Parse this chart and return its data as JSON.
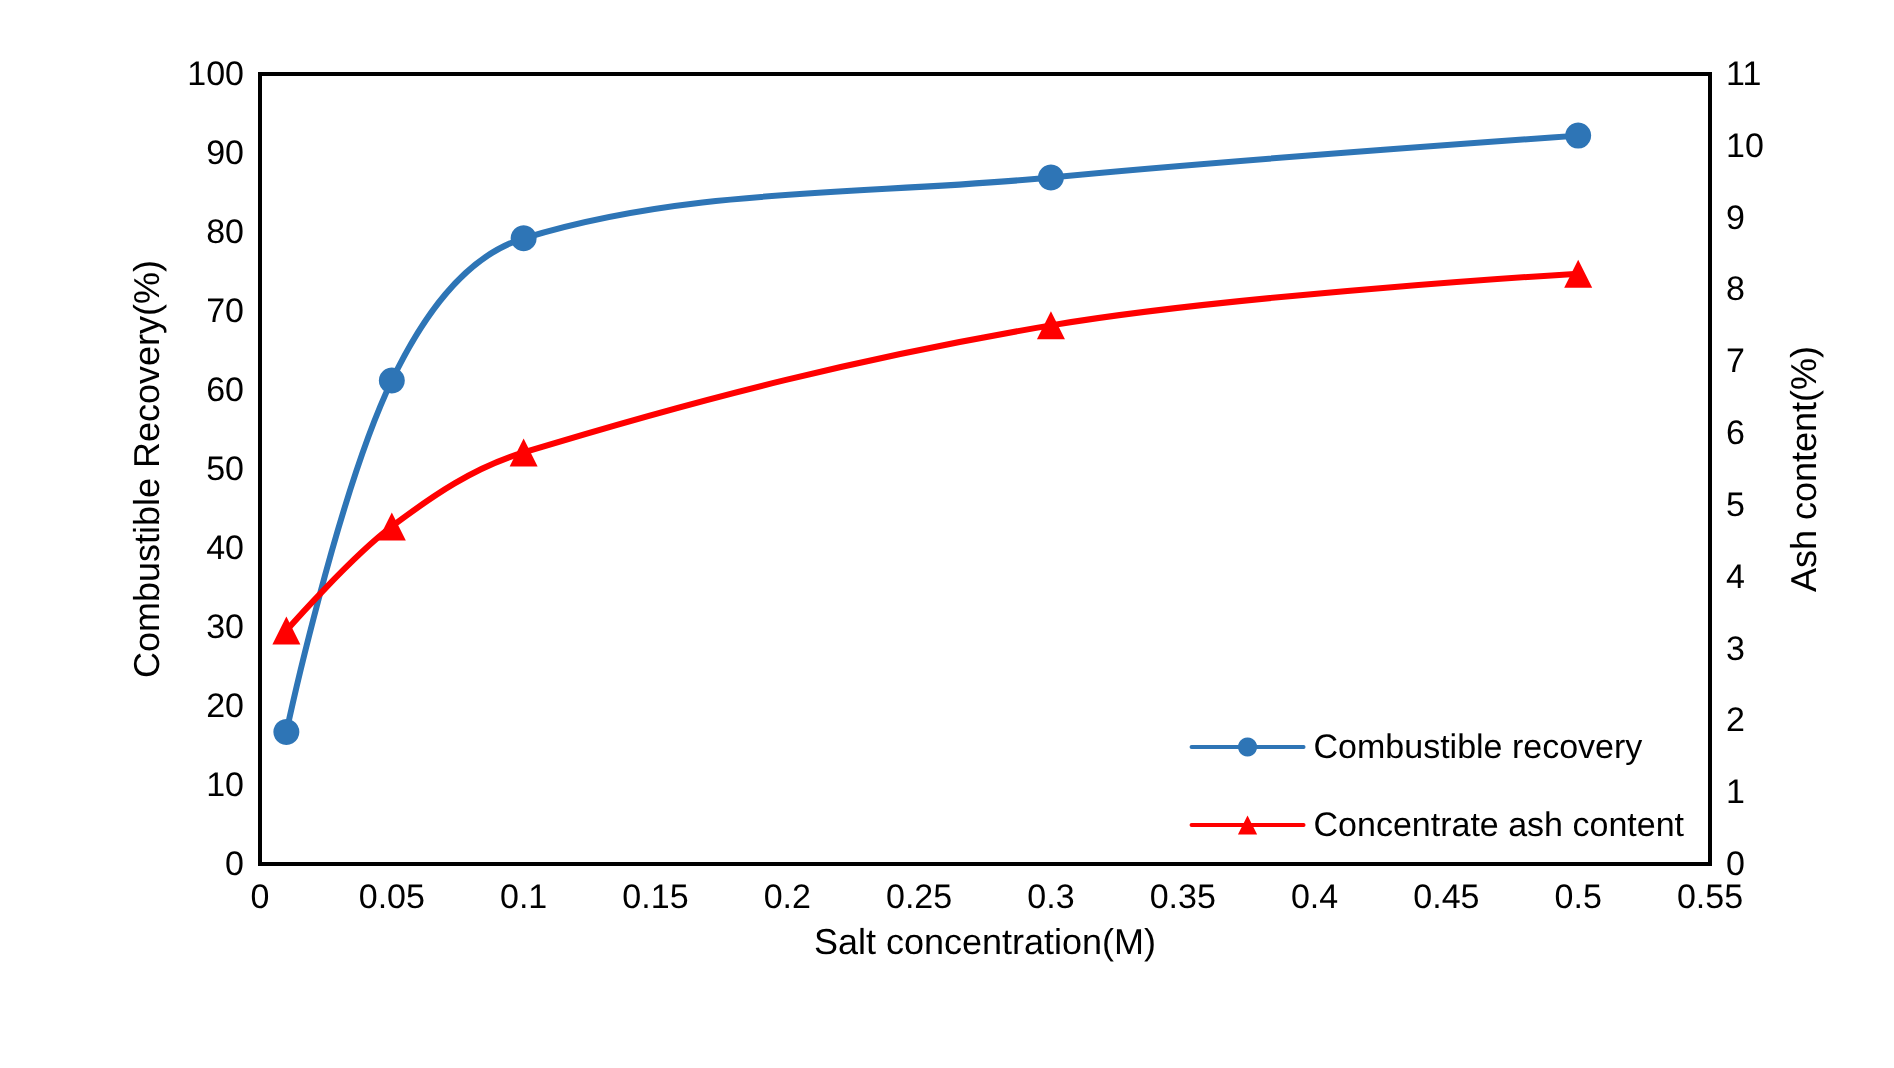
{
  "chart_data": {
    "type": "line",
    "xlabel": "Salt concentration(M)",
    "ylabel": "Combustible Recovery(%)",
    "y2label": "Ash content(%)",
    "x": [
      0.01,
      0.05,
      0.1,
      0.3,
      0.5
    ],
    "series": [
      {
        "name": "Combustible recovery",
        "color": "#2e75b6",
        "marker": "circle",
        "values": [
          16.7,
          61.2,
          79.2,
          86.9,
          92.2
        ]
      },
      {
        "name": "Concentrate ash content",
        "color": "#ff0000",
        "marker": "triangle",
        "axis": "y2",
        "values": [
          3.25,
          4.7,
          5.73,
          7.5,
          8.22
        ]
      }
    ],
    "xlim": [
      0,
      0.55
    ],
    "xticks": [
      0,
      0.05,
      0.1,
      0.15,
      0.2,
      0.25,
      0.3,
      0.35,
      0.4,
      0.45,
      0.5,
      0.55
    ],
    "ylim": [
      0,
      100
    ],
    "yticks": [
      0,
      10,
      20,
      30,
      40,
      50,
      60,
      70,
      80,
      90,
      100
    ],
    "y2lim": [
      0,
      11
    ],
    "y2ticks": [
      0,
      1,
      2,
      3,
      4,
      5,
      6,
      7,
      8,
      9,
      10,
      11
    ],
    "grid": false,
    "legend": "bottom right"
  }
}
